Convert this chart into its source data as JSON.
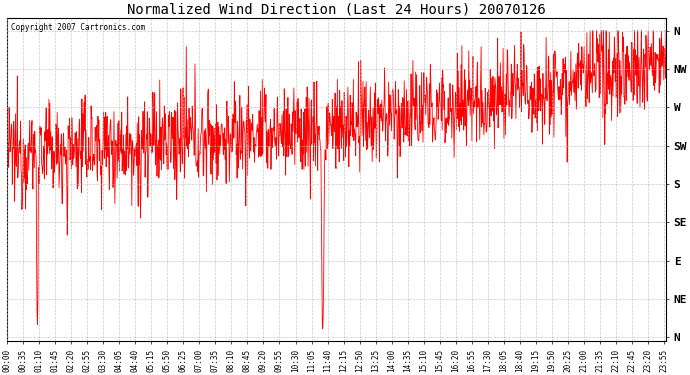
{
  "title": "Normalized Wind Direction (Last 24 Hours) 20070126",
  "copyright_text": "Copyright 2007 Cartronics.com",
  "line_color": "#ff0000",
  "background_color": "#ffffff",
  "grid_color": "#bbbbbb",
  "ytick_labels": [
    "N",
    "NE",
    "E",
    "SE",
    "S",
    "SW",
    "W",
    "NW",
    "N"
  ],
  "ytick_values": [
    0,
    45,
    90,
    135,
    180,
    225,
    270,
    315,
    360
  ],
  "ylim": [
    -5,
    375
  ],
  "figsize": [
    6.9,
    3.75
  ],
  "dpi": 100
}
